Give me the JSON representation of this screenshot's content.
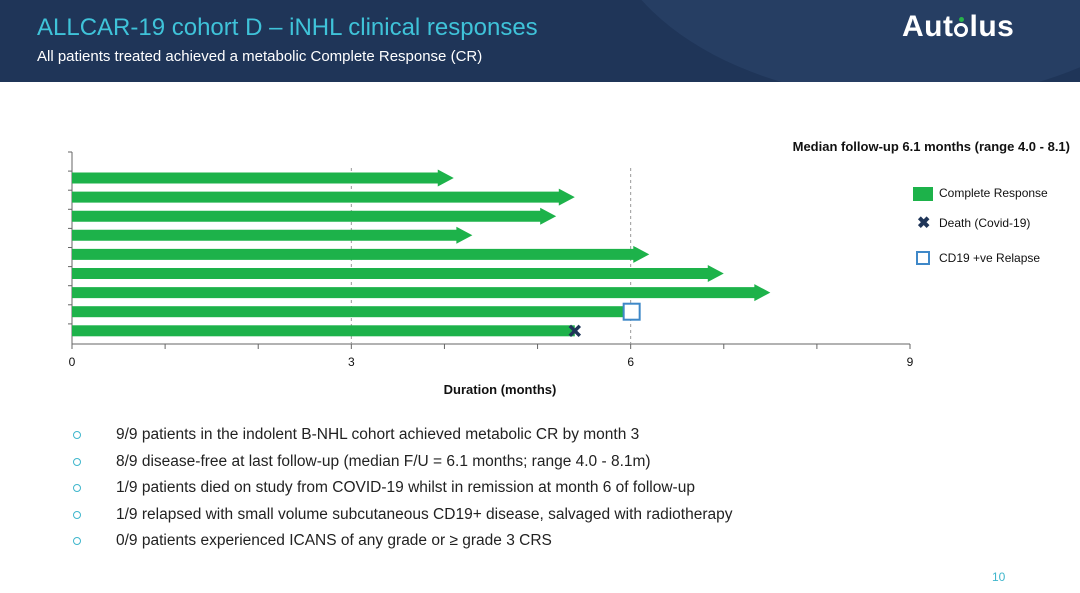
{
  "header": {
    "title": "ALLCAR-19 cohort D – iNHL clinical responses",
    "subtitle": "All patients treated achieved a metabolic Complete Response (CR)",
    "logo_prefix": "Aut",
    "logo_suffix": "lus"
  },
  "median_text": "Median follow-up 6.1 months (range 4.0 - 8.1)",
  "legend": {
    "complete_response": "Complete Response",
    "death": "Death (Covid-19)",
    "relapse": "CD19 +ve Relapse"
  },
  "colors": {
    "bar": "#1db24a",
    "header_bg": "#1f3558",
    "accent": "#3fc3d9",
    "death_marker": "#1f3558",
    "relapse_marker": "#3f88c8"
  },
  "chart_data": {
    "type": "bar",
    "orientation": "horizontal",
    "title": "",
    "xlabel": "Duration (months)",
    "ylabel": "",
    "xlim": [
      0,
      9
    ],
    "xticks": [
      0,
      3,
      6,
      9
    ],
    "reference_lines": [
      3,
      6
    ],
    "series": [
      {
        "name": "Complete Response",
        "values": [
          4.1,
          5.4,
          5.2,
          4.3,
          6.2,
          7.0,
          7.5,
          6.0,
          5.4
        ]
      }
    ],
    "events": [
      {
        "type": "CD19 +ve Relapse",
        "patient": 8,
        "x": 6.0
      },
      {
        "type": "Death (Covid-19)",
        "patient": 9,
        "x": 5.4
      }
    ]
  },
  "bullets": [
    "9/9 patients in the indolent B-NHL cohort achieved metabolic CR by month 3",
    "8/9 disease-free at last follow-up (median F/U = 6.1 months; range 4.0 - 8.1m)",
    "1/9 patients died on study from COVID-19 whilst in remission at month 6 of follow-up",
    "1/9 relapsed with small volume subcutaneous CD19+ disease, salvaged with radiotherapy",
    "0/9 patients experienced ICANS of any grade or ≥ grade 3 CRS"
  ],
  "page_number": "10"
}
